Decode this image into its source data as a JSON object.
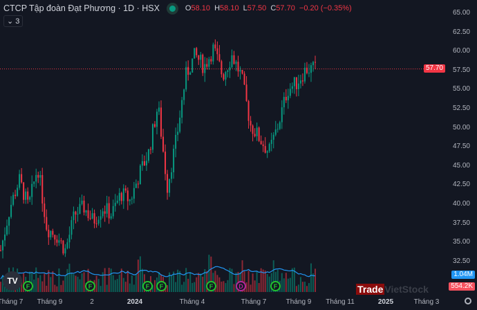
{
  "header": {
    "title": "CTCP Tập đoàn Đạt Phương · 1D · HSX",
    "status_color": "#089981",
    "ohlc": {
      "o_label": "O",
      "o": "58.10",
      "h_label": "H",
      "h": "58.10",
      "l_label": "L",
      "l": "57.50",
      "c_label": "C",
      "c": "57.70",
      "change": "−0.20 (−0.35%)"
    },
    "collapse_label": "⌄ 3"
  },
  "price_axis": [
    "65.00",
    "62.50",
    "60.00",
    "57.50",
    "55.00",
    "52.50",
    "50.00",
    "47.50",
    "45.00",
    "42.50",
    "40.00",
    "37.50",
    "35.00",
    "32.50"
  ],
  "last_price": "57.70",
  "volume": {
    "ma_label": "1.04M",
    "last_label": "554.2K"
  },
  "time_axis": [
    {
      "label": "Tháng 7"
    },
    {
      "label": "Tháng 9"
    },
    {
      "label": "2"
    },
    {
      "label": "2024",
      "bold": true
    },
    {
      "label": "Tháng 4"
    },
    {
      "label": "Tháng 7"
    },
    {
      "label": "Tháng 9"
    },
    {
      "label": "Tháng 11"
    },
    {
      "label": "2025",
      "bold": true
    },
    {
      "label": "Tháng 3"
    }
  ],
  "events": [
    {
      "type": "F"
    },
    {
      "type": "F"
    },
    {
      "type": "F"
    },
    {
      "type": "F"
    },
    {
      "type": "F"
    },
    {
      "type": "D"
    },
    {
      "type": "F"
    }
  ],
  "logo": "TV",
  "watermark": {
    "a": "Trade",
    "b": "VietStock"
  },
  "colors": {
    "up": "#089981",
    "down": "#f23645",
    "vol_ma": "#2196f3",
    "bg": "#131722"
  },
  "chart_data": {
    "type": "candlestick",
    "close_path": [
      34,
      39.6,
      43.2,
      39.6,
      45,
      36.9,
      36,
      34,
      38.7,
      39.6,
      37.8,
      39.6,
      38.7,
      41.4,
      40.5,
      44,
      46.8,
      53,
      42.3,
      48.6,
      56.8,
      59.5,
      58,
      60.4,
      56.8,
      59.5,
      56.8,
      50.4,
      48.6,
      46.8,
      50.4,
      55,
      55.9,
      57.7,
      57.7
    ]
  }
}
